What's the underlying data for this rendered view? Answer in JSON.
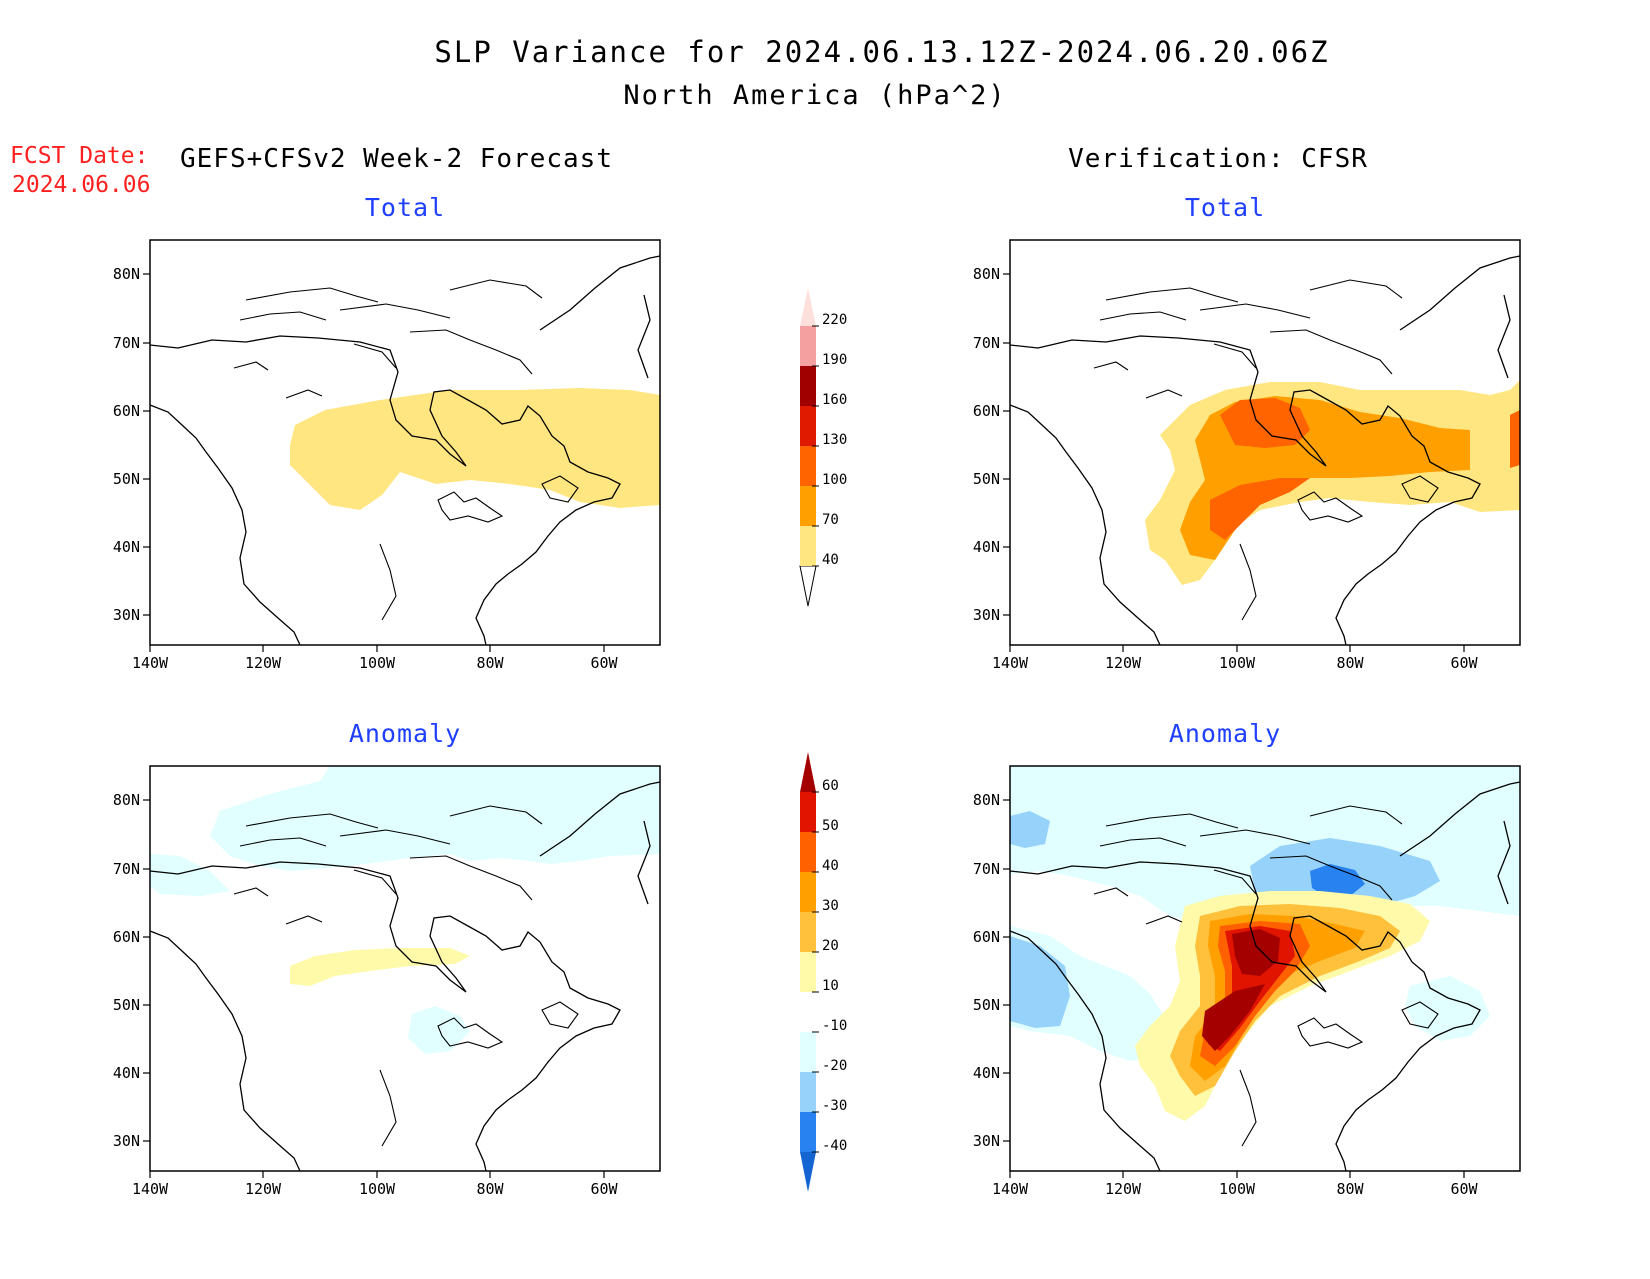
{
  "header": {
    "title": "SLP Variance for 2024.06.13.12Z-2024.06.20.06Z",
    "subtitle": "North America (hPa^2)",
    "fcst_label": "FCST Date:",
    "fcst_date": "2024.06.06"
  },
  "columns": {
    "left_title": "GEFS+CFSv2 Week-2 Forecast",
    "right_title": "Verification: CFSR"
  },
  "panels": {
    "total_label": "Total",
    "anomaly_label": "Anomaly"
  },
  "axes": {
    "lat_labels": [
      "80N",
      "70N",
      "60N",
      "50N",
      "40N",
      "30N"
    ],
    "lon_labels": [
      "140W",
      "120W",
      "100W",
      "80W",
      "60W"
    ]
  },
  "colorbars": {
    "total": {
      "levels": [
        "40",
        "70",
        "100",
        "130",
        "160",
        "190",
        "220"
      ],
      "colors": [
        "#ffe680",
        "#ffa000",
        "#ff6400",
        "#e01a00",
        "#a00000",
        "#f4a0a0",
        "#fde0dc"
      ]
    },
    "anomaly": {
      "levels": [
        "-40",
        "-30",
        "-20",
        "-10",
        "10",
        "20",
        "30",
        "40",
        "50",
        "60"
      ],
      "colors": [
        "#1464d2",
        "#2882f0",
        "#96d2fa",
        "#e1ffff",
        "#ffffff",
        "#fffaaa",
        "#ffc03c",
        "#ffa000",
        "#ff6000",
        "#e11400",
        "#a50000"
      ]
    }
  }
}
